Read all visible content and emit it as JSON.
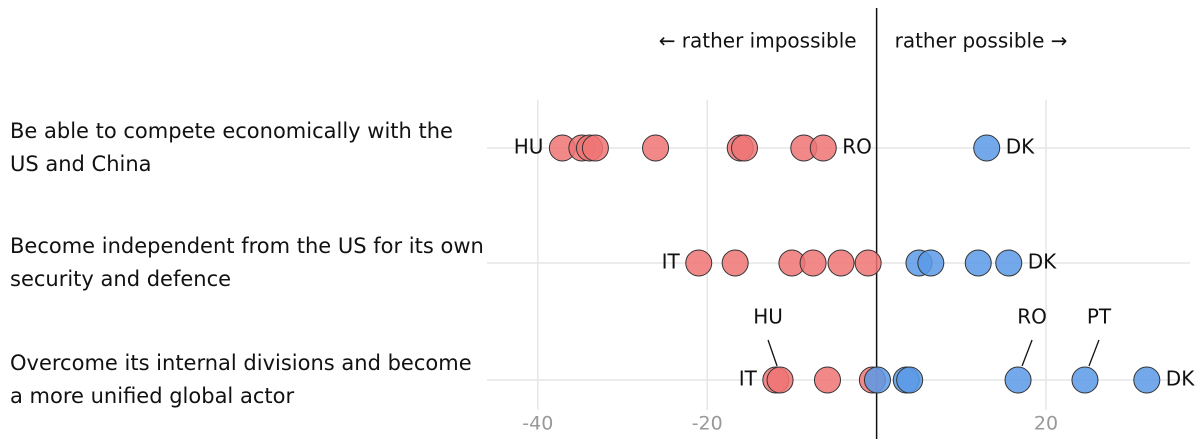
{
  "chart_data": {
    "type": "dot",
    "annotations": {
      "left": "← rather impossible",
      "right": "rather possible →"
    },
    "xlim": [
      -46,
      37
    ],
    "xticks": [
      -40,
      -20,
      20
    ],
    "grid": true,
    "colors": {
      "negative": "#f07474",
      "positive": "#5b9ae6"
    },
    "rows": [
      {
        "label": "Be able to compete economically with the US and China",
        "values": [
          -37.1,
          -34.8,
          -33.9,
          -33.2,
          -26.1,
          -16.1,
          -15.6,
          -8.6,
          -6.3,
          13.0
        ],
        "point_labels": [
          "HU",
          null,
          null,
          null,
          null,
          null,
          null,
          null,
          "RO",
          "DK"
        ]
      },
      {
        "label": "Become independent from the US for its own security and defence",
        "values": [
          -21.0,
          -16.7,
          -10.0,
          -7.5,
          -4.2,
          -1.0,
          5.0,
          6.4,
          12.0,
          15.6
        ],
        "point_labels": [
          "IT",
          null,
          null,
          null,
          null,
          null,
          null,
          null,
          null,
          "DK"
        ]
      },
      {
        "label": "Overcome its internal divisions and become a more unified global actor",
        "values": [
          -11.9,
          -11.4,
          -5.8,
          -0.5,
          0.1,
          3.5,
          3.9,
          16.7,
          24.6,
          31.9
        ],
        "point_labels": [
          "IT",
          "HU",
          null,
          null,
          null,
          null,
          null,
          "RO",
          "PT",
          "DK"
        ]
      }
    ]
  }
}
